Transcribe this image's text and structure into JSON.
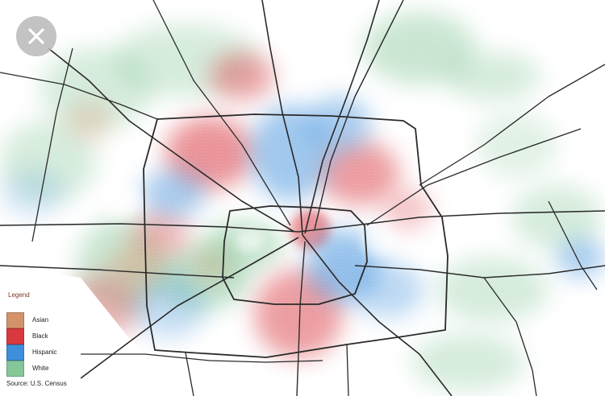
{
  "overlay": {
    "close_icon": "close-x-icon",
    "close_bg": "#b9b9b9"
  },
  "map": {
    "background": "#ffffff",
    "road_color": "#2a2a2a"
  },
  "legend": {
    "title": "Legend",
    "items": [
      {
        "label": "Asian",
        "color": "#d4926a"
      },
      {
        "label": "Black",
        "color": "#d9383f"
      },
      {
        "label": "Hispanic",
        "color": "#3d8fdc"
      },
      {
        "label": "White",
        "color": "#86c79a"
      }
    ],
    "source": "Source: U.S. Census"
  }
}
